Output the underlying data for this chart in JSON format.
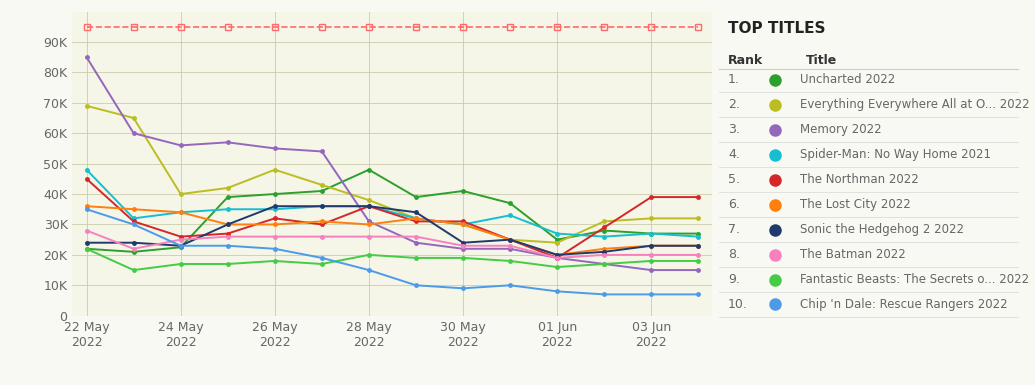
{
  "title": "TOP TITLES",
  "background_color": "#f9f9f4",
  "plot_bg_color": "#f5f5e8",
  "x_tick_labels": [
    "22 May\n2022",
    "24 May\n2022",
    "26 May\n2022",
    "28 May\n2022",
    "30 May\n2022",
    "01 Jun\n2022",
    "03 Jun\n2022"
  ],
  "x_tick_positions": [
    0,
    2,
    4,
    6,
    8,
    10,
    12
  ],
  "ylim": [
    0,
    100000
  ],
  "yticks": [
    0,
    10000,
    20000,
    30000,
    40000,
    50000,
    60000,
    70000,
    80000,
    90000
  ],
  "ytick_labels": [
    "0",
    "10K",
    "20K",
    "30K",
    "40K",
    "50K",
    "60K",
    "70K",
    "80K",
    "90K"
  ],
  "series": [
    {
      "name": "Uncharted 2022",
      "color": "#2ca02c",
      "rank": 1,
      "values": [
        22000,
        21000,
        22500,
        39000,
        40000,
        41000,
        48000,
        39000,
        41000,
        37000,
        25000,
        28000,
        27000,
        27000
      ]
    },
    {
      "name": "Everything Everywhere All at O... 2022",
      "color": "#bcbd22",
      "rank": 2,
      "values": [
        69000,
        65000,
        40000,
        42000,
        48000,
        43000,
        38000,
        32000,
        30000,
        25000,
        24000,
        31000,
        32000,
        32000
      ]
    },
    {
      "name": "Memory 2022",
      "color": "#9467bd",
      "rank": 3,
      "values": [
        85000,
        60000,
        56000,
        57000,
        55000,
        54000,
        31000,
        24000,
        22000,
        22000,
        19000,
        17000,
        15000,
        15000
      ]
    },
    {
      "name": "Spider-Man: No Way Home 2021",
      "color": "#17becf",
      "rank": 4,
      "values": [
        48000,
        32000,
        34000,
        35000,
        35000,
        36000,
        36000,
        32000,
        30000,
        33000,
        27000,
        26000,
        27000,
        26000
      ]
    },
    {
      "name": "The Northman 2022",
      "color": "#d62728",
      "rank": 5,
      "values": [
        45000,
        31000,
        26000,
        27000,
        32000,
        30000,
        36000,
        31000,
        31000,
        25000,
        19000,
        29000,
        39000,
        39000
      ]
    },
    {
      "name": "The Lost City 2022",
      "color": "#ff7f0e",
      "rank": 6,
      "values": [
        36000,
        35000,
        34000,
        30000,
        30000,
        31000,
        30000,
        32000,
        30000,
        25000,
        20000,
        22000,
        23000,
        23000
      ]
    },
    {
      "name": "Sonic the Hedgehog 2 2022",
      "color": "#1f3a6e",
      "rank": 7,
      "values": [
        24000,
        24000,
        23000,
        30000,
        36000,
        36000,
        36000,
        34000,
        24000,
        25000,
        20000,
        21000,
        23000,
        23000
      ]
    },
    {
      "name": "The Batman 2022",
      "color": "#f781bf",
      "rank": 8,
      "values": [
        28000,
        22000,
        25000,
        26000,
        26000,
        26000,
        26000,
        26000,
        23000,
        23000,
        19000,
        20000,
        20000,
        20000
      ]
    },
    {
      "name": "Fantastic Beasts: The Secrets o... 2022",
      "color": "#44cc44",
      "rank": 9,
      "values": [
        22000,
        15000,
        17000,
        17000,
        18000,
        17000,
        20000,
        19000,
        19000,
        18000,
        16000,
        17000,
        18000,
        18000
      ]
    },
    {
      "name": "Chip 'n Dale: Rescue Rangers 2022",
      "color": "#4c9be8",
      "rank": 10,
      "values": [
        35000,
        30000,
        23000,
        23000,
        22000,
        19000,
        15000,
        10000,
        9000,
        10000,
        8000,
        7000,
        7000,
        7000
      ]
    }
  ],
  "top_line_color": "#ff6b6b",
  "top_line_value": 95000,
  "axis_fontsize": 9,
  "grid_color": "#ccccaa",
  "right_panel_bg": "#ffffff"
}
